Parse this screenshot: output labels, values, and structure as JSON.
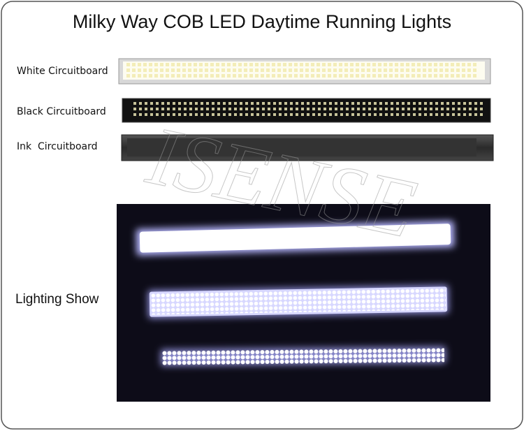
{
  "header": {
    "title": "Milky Way COB LED Daytime Running Lights"
  },
  "variants": [
    {
      "label": "White Circuitboard"
    },
    {
      "label": "Black Circuitboard"
    },
    {
      "label": "Ink  Circuitboard"
    }
  ],
  "lighting": {
    "label": "Lighting Show"
  },
  "watermark": "ISENSE"
}
